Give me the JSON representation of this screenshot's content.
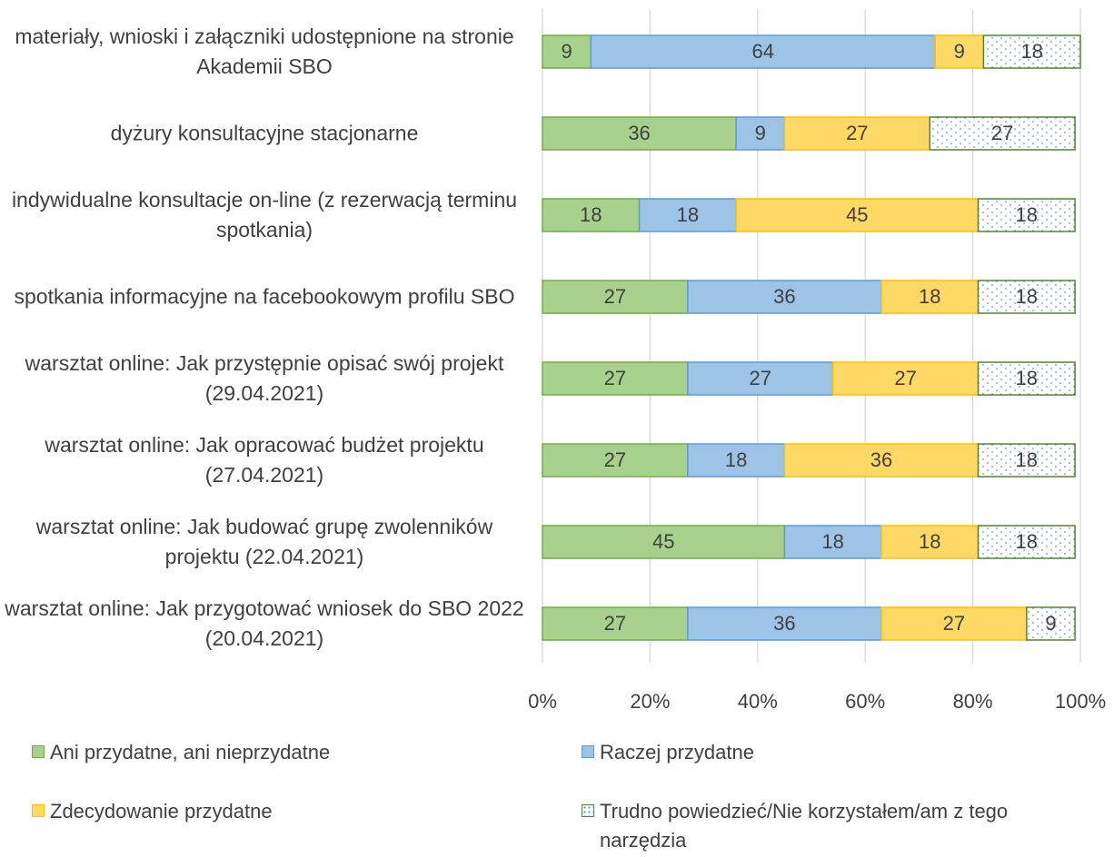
{
  "chart_data": {
    "type": "bar",
    "orientation": "horizontal",
    "stacked": true,
    "categories": [
      "materiały, wnioski i załączniki udostępnione na stronie Akademii SBO",
      "dyżury konsultacyjne stacjonarne",
      "indywidualne konsultacje on-line (z rezerwacją terminu spotkania)",
      "spotkania informacyjne na facebookowym profilu SBO",
      "warsztat online: Jak przystępnie opisać swój projekt (29.04.2021)",
      "warsztat online: Jak opracować budżet projektu (27.04.2021)",
      "warsztat online: Jak budować grupę zwolenników projektu (22.04.2021)",
      "warsztat online: Jak przygotować wniosek do SBO 2022 (20.04.2021)"
    ],
    "series": [
      {
        "name": "Ani przydatne, ani nieprzydatne",
        "color": "#a9d18e",
        "values": [
          9,
          36,
          18,
          27,
          27,
          27,
          45,
          27
        ]
      },
      {
        "name": "Raczej przydatne",
        "color": "#9dc3e6",
        "values": [
          64,
          9,
          18,
          36,
          27,
          18,
          18,
          36
        ]
      },
      {
        "name": "Zdecydowanie przydatne",
        "color": "#ffd966",
        "values": [
          9,
          27,
          45,
          18,
          27,
          36,
          18,
          27
        ]
      },
      {
        "name": "Trudno powiedzieć/Nie korzystałem/am z tego narzędzia",
        "color": "#ffffff",
        "pattern": "dots",
        "values": [
          18,
          27,
          18,
          18,
          18,
          18,
          18,
          9
        ]
      }
    ],
    "xlim": [
      0,
      100
    ],
    "xticks": [
      {
        "value": 0,
        "label": "0%"
      },
      {
        "value": 20,
        "label": "20%"
      },
      {
        "value": 40,
        "label": "40%"
      },
      {
        "value": 60,
        "label": "60%"
      },
      {
        "value": 80,
        "label": "80%"
      },
      {
        "value": 100,
        "label": "100%"
      }
    ],
    "grid": true,
    "legend": "bottom"
  }
}
